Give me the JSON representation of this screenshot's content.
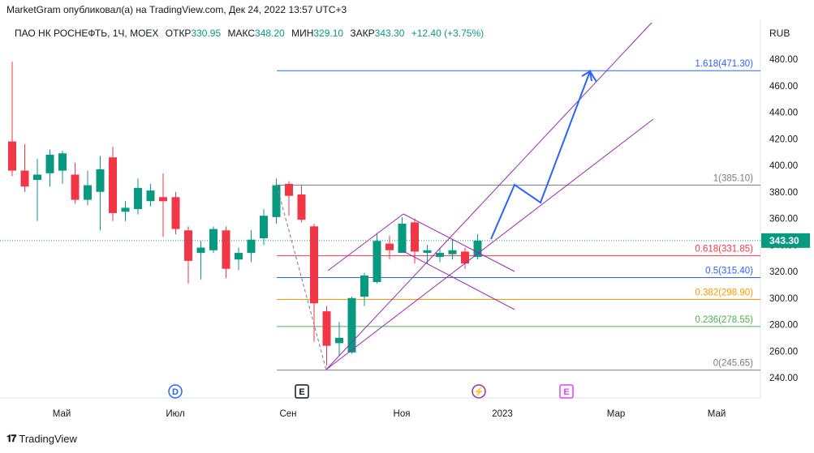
{
  "header": "MarketGram опубликовал(а) на TradingView.com, Дек 24, 2022 13:57 UTC+3",
  "info": {
    "symbol": "ПАО НК РОСНЕФТЬ, 1Ч, MOEX",
    "open_label": "ОТКР",
    "open": "330.95",
    "high_label": "МАКС",
    "high": "348.20",
    "low_label": "МИН",
    "low": "329.10",
    "close_label": "ЗАКР",
    "close": "343.30",
    "change": "+12.40 (+3.75%)"
  },
  "currency": "RUB",
  "footer": {
    "brand": "TradingView"
  },
  "chart_data": {
    "type": "candlestick",
    "y_axis": {
      "min": 240,
      "max": 480,
      "ticks": [
        240,
        260,
        280,
        300,
        320,
        340,
        360,
        380,
        400,
        420,
        440,
        460,
        480
      ]
    },
    "x_axis": {
      "ticks": [
        "Май",
        "Июл",
        "Сен",
        "Ноя",
        "2023",
        "Мар",
        "Май"
      ]
    },
    "last_price": {
      "value": 343.3,
      "label": "343.30",
      "color": "#089981"
    },
    "candles": [
      {
        "o": 418,
        "h": 478,
        "l": 392,
        "c": 396
      },
      {
        "o": 396,
        "h": 416,
        "l": 380,
        "c": 384
      },
      {
        "o": 389,
        "h": 405,
        "l": 358,
        "c": 393
      },
      {
        "o": 394,
        "h": 412,
        "l": 384,
        "c": 408
      },
      {
        "o": 396,
        "h": 411,
        "l": 386,
        "c": 409
      },
      {
        "o": 393,
        "h": 402,
        "l": 371,
        "c": 374
      },
      {
        "o": 374,
        "h": 396,
        "l": 370,
        "c": 385
      },
      {
        "o": 380,
        "h": 407,
        "l": 351,
        "c": 397
      },
      {
        "o": 406,
        "h": 414,
        "l": 358,
        "c": 364
      },
      {
        "o": 365,
        "h": 373,
        "l": 358,
        "c": 368
      },
      {
        "o": 367,
        "h": 390,
        "l": 363,
        "c": 383
      },
      {
        "o": 373,
        "h": 386,
        "l": 369,
        "c": 381
      },
      {
        "o": 376,
        "h": 394,
        "l": 346,
        "c": 373
      },
      {
        "o": 376,
        "h": 380,
        "l": 348,
        "c": 352
      },
      {
        "o": 351,
        "h": 354,
        "l": 311,
        "c": 328
      },
      {
        "o": 334,
        "h": 343,
        "l": 314,
        "c": 338
      },
      {
        "o": 336,
        "h": 354,
        "l": 334,
        "c": 352
      },
      {
        "o": 351,
        "h": 354,
        "l": 315,
        "c": 322
      },
      {
        "o": 329,
        "h": 338,
        "l": 321,
        "c": 334
      },
      {
        "o": 334,
        "h": 351,
        "l": 327,
        "c": 344
      },
      {
        "o": 345,
        "h": 367,
        "l": 340,
        "c": 362
      },
      {
        "o": 361,
        "h": 390,
        "l": 356,
        "c": 385
      },
      {
        "o": 386,
        "h": 388,
        "l": 362,
        "c": 377
      },
      {
        "o": 378,
        "h": 385,
        "l": 357,
        "c": 359
      },
      {
        "o": 354,
        "h": 356,
        "l": 267,
        "c": 296
      },
      {
        "o": 290,
        "h": 294,
        "l": 249,
        "c": 264
      },
      {
        "o": 266,
        "h": 282,
        "l": 256,
        "c": 270
      },
      {
        "o": 259,
        "h": 301,
        "l": 258,
        "c": 300
      },
      {
        "o": 301,
        "h": 319,
        "l": 294,
        "c": 317
      },
      {
        "o": 312,
        "h": 349,
        "l": 311,
        "c": 343
      },
      {
        "o": 341,
        "h": 347,
        "l": 329,
        "c": 336
      },
      {
        "o": 334,
        "h": 361,
        "l": 334,
        "c": 356
      },
      {
        "o": 357,
        "h": 360,
        "l": 326,
        "c": 335
      },
      {
        "o": 334,
        "h": 340,
        "l": 326,
        "c": 336
      },
      {
        "o": 331,
        "h": 338,
        "l": 327,
        "c": 334
      },
      {
        "o": 333,
        "h": 344,
        "l": 329,
        "c": 336
      },
      {
        "o": 335,
        "h": 338,
        "l": 322,
        "c": 326
      },
      {
        "o": 330.95,
        "h": 348.2,
        "l": 329.1,
        "c": 343.3
      }
    ],
    "fib_levels": [
      {
        "label": "0(245.65)",
        "value": 245.65,
        "color": "#787b86"
      },
      {
        "label": "0.236(278.55)",
        "value": 278.55,
        "color": "#4caf50"
      },
      {
        "label": "0.382(298.90)",
        "value": 298.9,
        "color": "#ff9800"
      },
      {
        "label": "0.5(315.40)",
        "value": 315.4,
        "color": "#2962ff"
      },
      {
        "label": "0.618(331.85)",
        "value": 331.85,
        "color": "#f23645"
      },
      {
        "label": "1(385.10)",
        "value": 385.1,
        "color": "#787b86"
      },
      {
        "label": "1.618(471.30)",
        "value": 471.3,
        "color": "#2962ff"
      }
    ],
    "events": [
      {
        "symbol": "D",
        "color": "#2962ff",
        "shape": "circle"
      },
      {
        "symbol": "E",
        "color": "#131722",
        "shape": "square"
      },
      {
        "symbol": "⚡",
        "color": "#9c27b0",
        "shape": "circle"
      },
      {
        "symbol": "E",
        "color": "#e040fb",
        "shape": "square"
      }
    ],
    "colors": {
      "up": "#089981",
      "down": "#f23645",
      "channel": "#9c27b0",
      "projection": "#2962ff"
    }
  }
}
